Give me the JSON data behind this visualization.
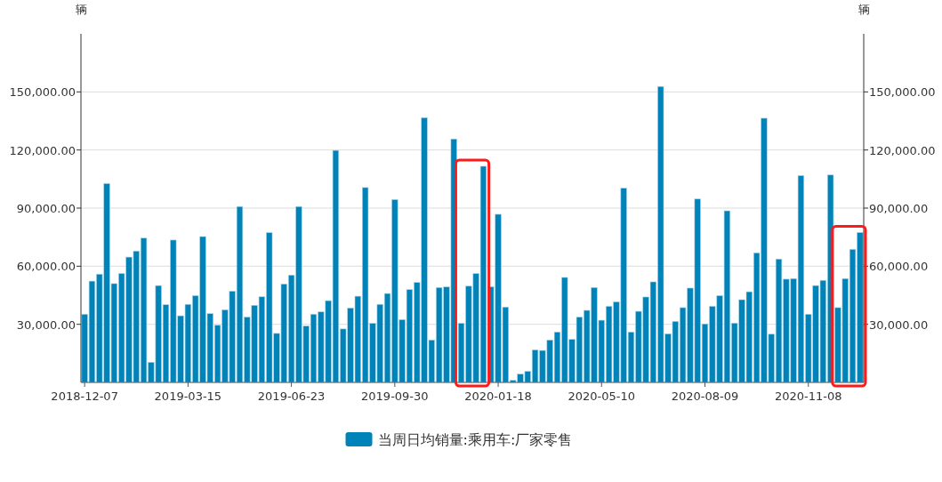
{
  "chart_data": {
    "type": "bar",
    "ylabel": "辆",
    "y2label": "辆",
    "categories": [
      "2018-12-07",
      null,
      null,
      null,
      null,
      null,
      null,
      null,
      null,
      null,
      null,
      null,
      null,
      null,
      "2019-03-15",
      null,
      null,
      null,
      null,
      null,
      null,
      null,
      null,
      null,
      null,
      null,
      null,
      null,
      "2019-06-23",
      null,
      null,
      null,
      null,
      null,
      null,
      null,
      null,
      null,
      null,
      null,
      null,
      null,
      "2019-09-30",
      null,
      null,
      null,
      null,
      null,
      null,
      null,
      null,
      null,
      null,
      null,
      null,
      null,
      "2020-01-18",
      null,
      null,
      null,
      null,
      null,
      null,
      null,
      null,
      null,
      null,
      null,
      null,
      null,
      "2020-05-10",
      null,
      null,
      null,
      null,
      null,
      null,
      null,
      null,
      null,
      null,
      null,
      null,
      null,
      "2020-08-09",
      null,
      null,
      null,
      null,
      null,
      null,
      null,
      null,
      null,
      null,
      null,
      null,
      null,
      "2020-11-08",
      null,
      null,
      null,
      null,
      null,
      null,
      null
    ],
    "series": [
      {
        "name": "当周日均销量:乘用车:厂家零售",
        "color": "#0083b8",
        "values": [
          35200,
          52300,
          55900,
          102700,
          51000,
          56200,
          64700,
          67800,
          74500,
          10400,
          50000,
          40100,
          73500,
          34400,
          40300,
          44800,
          75300,
          35500,
          29500,
          37500,
          47100,
          90800,
          33700,
          39800,
          44200,
          77300,
          25300,
          50800,
          55400,
          90800,
          29100,
          35200,
          36400,
          42200,
          119800,
          27600,
          38400,
          44500,
          100600,
          30500,
          40300,
          45900,
          94400,
          32400,
          47900,
          51600,
          136700,
          21900,
          49000,
          49300,
          125700,
          30500,
          49700,
          56200,
          111600,
          49400,
          86800,
          38900,
          1100,
          4300,
          5700,
          16800,
          16500,
          21900,
          26000,
          54200,
          22200,
          33700,
          37200,
          49000,
          32100,
          39300,
          41600,
          100300,
          26000,
          36700,
          44100,
          51900,
          152800,
          25100,
          31500,
          38600,
          48700,
          94700,
          30200,
          39300,
          44800,
          88600,
          30600,
          42700,
          46800,
          66900,
          136400,
          24900,
          63700,
          53300,
          53600,
          106800,
          35200,
          50000,
          52700,
          107100,
          38600,
          53600,
          68700,
          77400
        ]
      }
    ],
    "ylim": [
      0,
      180000
    ],
    "yticks": [
      {
        "value": 30000,
        "label": "30,000.00"
      },
      {
        "value": 60000,
        "label": "60,000.00"
      },
      {
        "value": 90000,
        "label": "90,000.00"
      },
      {
        "value": 120000,
        "label": "120,000.00"
      },
      {
        "value": 150000,
        "label": "150,000.00"
      }
    ],
    "y2lim": [
      0,
      180000
    ],
    "y2ticks": [
      {
        "value": 30000,
        "label": "30,000.00"
      },
      {
        "value": 60000,
        "label": "60,000.00"
      },
      {
        "value": 90000,
        "label": "90,000.00"
      },
      {
        "value": 120000,
        "label": "120,000.00"
      },
      {
        "value": 150000,
        "label": "150,000.00"
      }
    ],
    "grid": "y",
    "legend": "bottom"
  }
}
